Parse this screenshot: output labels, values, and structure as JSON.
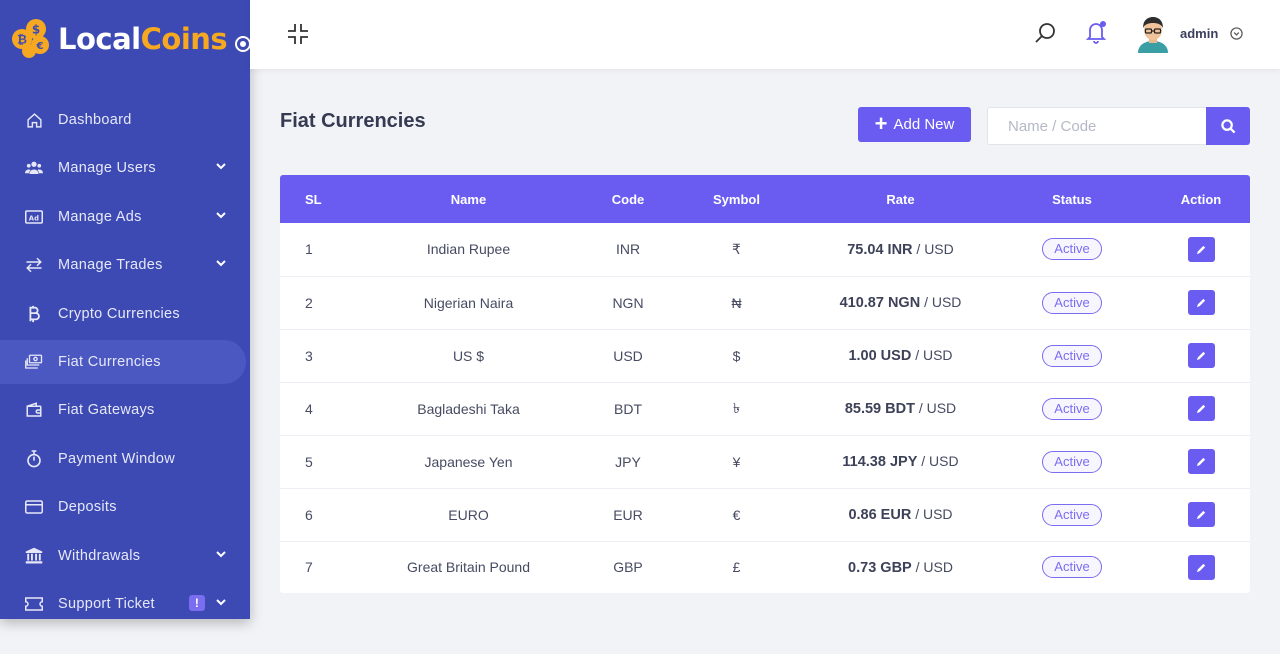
{
  "brand": {
    "name_part1": "Local",
    "name_part2": "Coins"
  },
  "sidebar": {
    "items": [
      {
        "label": "Dashboard",
        "icon": "home-icon",
        "has_submenu": false
      },
      {
        "label": "Manage Users",
        "icon": "users-icon",
        "has_submenu": true
      },
      {
        "label": "Manage Ads",
        "icon": "ad-icon",
        "has_submenu": true
      },
      {
        "label": "Manage Trades",
        "icon": "exchange-icon",
        "has_submenu": true
      },
      {
        "label": "Crypto Currencies",
        "icon": "bitcoin-icon",
        "has_submenu": false
      },
      {
        "label": "Fiat Currencies",
        "icon": "money-icon",
        "has_submenu": false,
        "active": true
      },
      {
        "label": "Fiat Gateways",
        "icon": "wallet-icon",
        "has_submenu": false
      },
      {
        "label": "Payment Window",
        "icon": "stopwatch-icon",
        "has_submenu": false
      },
      {
        "label": "Deposits",
        "icon": "credit-card-icon",
        "has_submenu": false
      },
      {
        "label": "Withdrawals",
        "icon": "bank-icon",
        "has_submenu": true
      },
      {
        "label": "Support Ticket",
        "icon": "ticket-icon",
        "has_submenu": true,
        "badge": "!"
      }
    ]
  },
  "header": {
    "user_name": "admin"
  },
  "main": {
    "title": "Fiat Currencies",
    "add_button_label": "Add New",
    "search_placeholder": "Name / Code"
  },
  "table": {
    "columns": [
      "SL",
      "Name",
      "Code",
      "Symbol",
      "Rate",
      "Status",
      "Action"
    ],
    "rows": [
      {
        "sl": "1",
        "name": "Indian Rupee",
        "code": "INR",
        "symbol": "₹",
        "rate": "75.04 INR",
        "rate_unit": " / USD",
        "status": "Active"
      },
      {
        "sl": "2",
        "name": "Nigerian Naira",
        "code": "NGN",
        "symbol": "₦",
        "rate": "410.87 NGN",
        "rate_unit": " / USD",
        "status": "Active"
      },
      {
        "sl": "3",
        "name": "US $",
        "code": "USD",
        "symbol": "$",
        "rate": "1.00 USD",
        "rate_unit": " / USD",
        "status": "Active"
      },
      {
        "sl": "4",
        "name": "Bagladeshi Taka",
        "code": "BDT",
        "symbol": "৳",
        "rate": "85.59 BDT",
        "rate_unit": " / USD",
        "status": "Active"
      },
      {
        "sl": "5",
        "name": "Japanese Yen",
        "code": "JPY",
        "symbol": "¥",
        "rate": "114.38 JPY",
        "rate_unit": " / USD",
        "status": "Active"
      },
      {
        "sl": "6",
        "name": "EURO",
        "code": "EUR",
        "symbol": "€",
        "rate": "0.86 EUR",
        "rate_unit": " / USD",
        "status": "Active"
      },
      {
        "sl": "7",
        "name": "Great Britain Pound",
        "code": "GBP",
        "symbol": "£",
        "rate": "0.73 GBP",
        "rate_unit": " / USD",
        "status": "Active"
      }
    ]
  },
  "colors": {
    "sidebar": "#3d4ab3",
    "accent": "#6a5cf0",
    "logo_orange": "#f6a821"
  }
}
